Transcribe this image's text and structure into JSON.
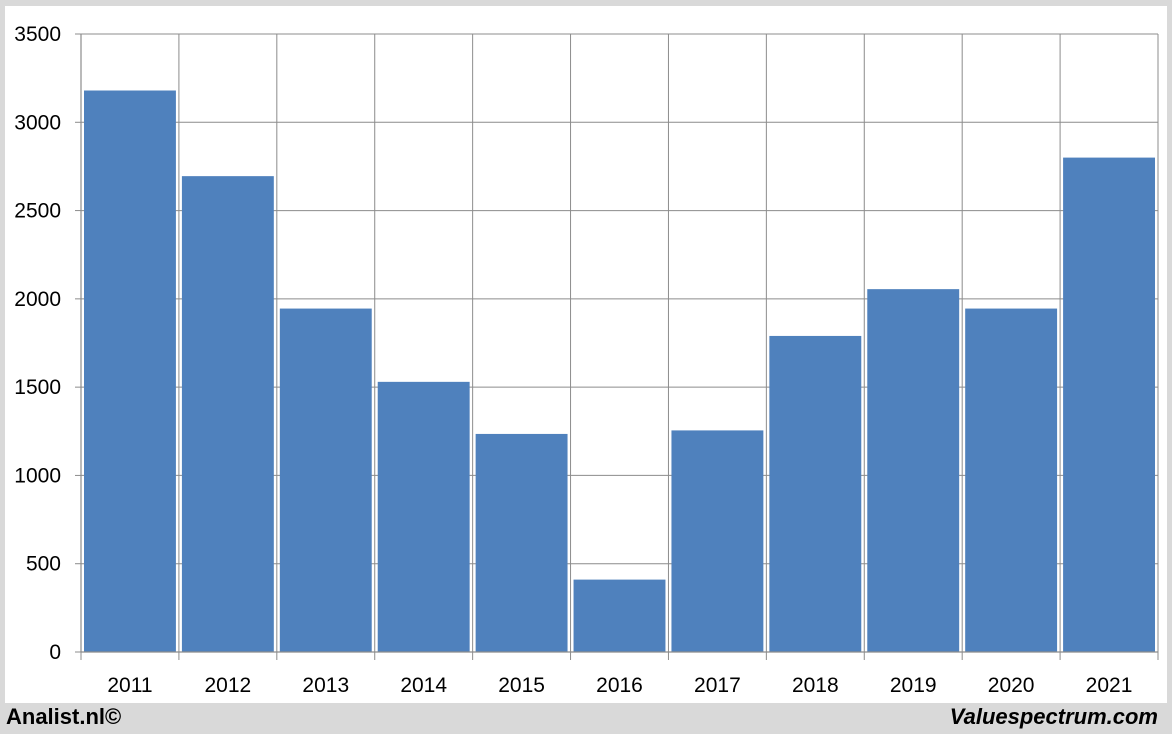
{
  "chart_data": {
    "type": "bar",
    "title": "",
    "xlabel": "",
    "ylabel": "",
    "categories": [
      "2011",
      "2012",
      "2013",
      "2014",
      "2015",
      "2016",
      "2017",
      "2018",
      "2019",
      "2020",
      "2021"
    ],
    "values": [
      3180,
      2695,
      1945,
      1530,
      1235,
      410,
      1255,
      1790,
      2055,
      1945,
      2800
    ],
    "ylim": [
      0,
      3500
    ],
    "yticks": [
      "0",
      "500",
      "1000",
      "1500",
      "2000",
      "2500",
      "3000",
      "3500"
    ],
    "grid": true,
    "legend": "none",
    "bar_color": "#4f81bd"
  },
  "footer": {
    "left": "Analist.nl©",
    "right": "Valuespectrum.com"
  }
}
